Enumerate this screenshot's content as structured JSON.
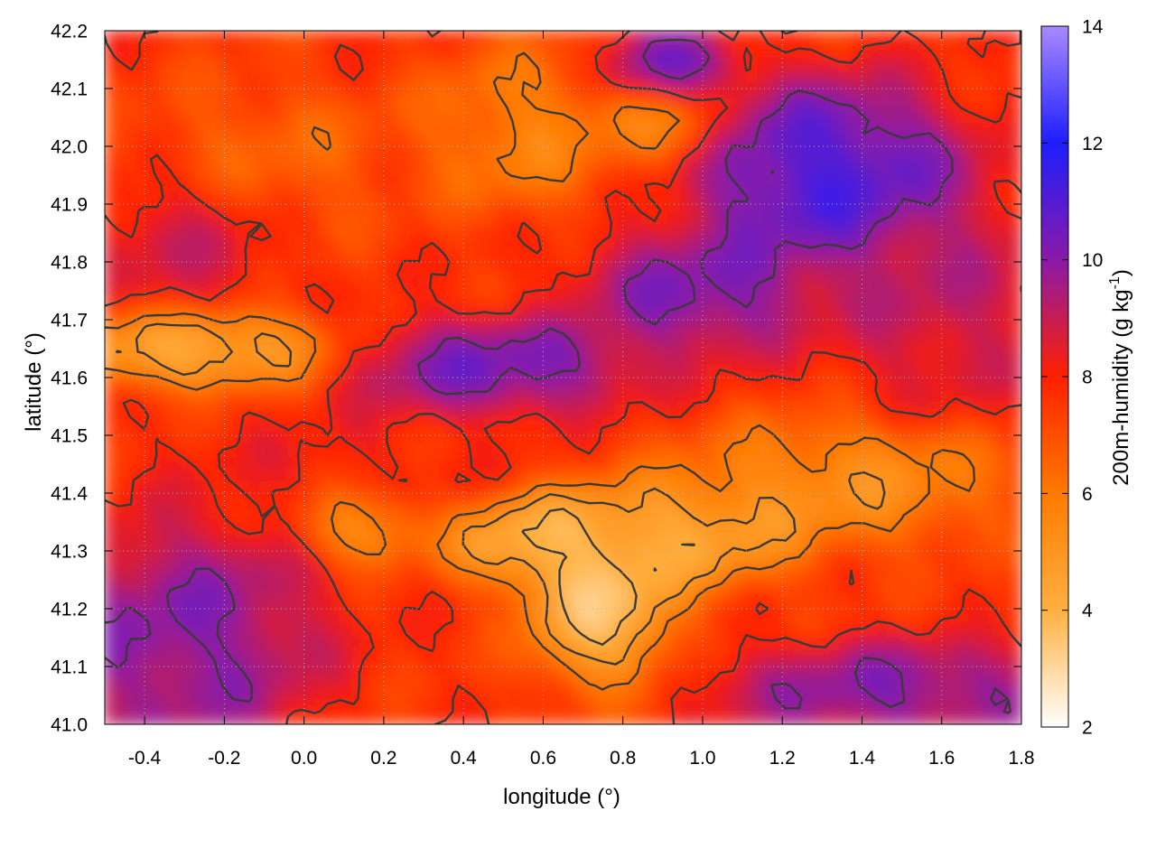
{
  "chart_data": {
    "type": "heatmap",
    "title": "",
    "xlabel": "longitude (°)",
    "ylabel": "latitude (°)",
    "xlim": [
      -0.5,
      1.8
    ],
    "ylim": [
      41.0,
      42.2
    ],
    "xticks": [
      "-0.4",
      "-0.2",
      "0.0",
      "0.2",
      "0.4",
      "0.6",
      "0.8",
      "1.0",
      "1.2",
      "1.4",
      "1.6",
      "1.8"
    ],
    "yticks": [
      "41.0",
      "41.1",
      "41.2",
      "41.3",
      "41.4",
      "41.5",
      "41.6",
      "41.7",
      "41.8",
      "41.9",
      "42.0",
      "42.1",
      "42.2"
    ],
    "grid": true,
    "contours": true,
    "colorbar": {
      "label_main": "200m-humidity (g kg",
      "label_sup": "-1",
      "label_close": ")",
      "range": [
        2,
        14
      ],
      "ticks": [
        "2",
        "4",
        "6",
        "8",
        "10",
        "12",
        "14"
      ],
      "colors": [
        "#ffffff",
        "#ffb040",
        "#ff7a00",
        "#ff2000",
        "#8a1aa8",
        "#1e1eff",
        "#a88aff"
      ]
    },
    "fields": {
      "base": 7.6,
      "blobs": [
        {
          "x": 0.75,
          "y": 41.22,
          "rx": 0.14,
          "ry": 0.11,
          "v": 2.3
        },
        {
          "x": 0.58,
          "y": 41.32,
          "rx": 0.16,
          "ry": 0.06,
          "v": 3.0
        },
        {
          "x": 0.95,
          "y": 41.33,
          "rx": 0.22,
          "ry": 0.07,
          "v": 3.5
        },
        {
          "x": 1.35,
          "y": 41.42,
          "rx": 0.3,
          "ry": 0.08,
          "v": 4.6
        },
        {
          "x": 0.15,
          "y": 41.35,
          "rx": 0.12,
          "ry": 0.05,
          "v": 4.2
        },
        {
          "x": -0.25,
          "y": 41.65,
          "rx": 0.25,
          "ry": 0.05,
          "v": 3.2
        },
        {
          "x": 0.55,
          "y": 42.03,
          "rx": 0.18,
          "ry": 0.1,
          "v": 5.2
        },
        {
          "x": 0.9,
          "y": 42.05,
          "rx": 0.12,
          "ry": 0.06,
          "v": 5.0
        },
        {
          "x": -0.1,
          "y": 41.98,
          "rx": 0.25,
          "ry": 0.1,
          "v": 6.2
        },
        {
          "x": 0.48,
          "y": 41.62,
          "rx": 0.28,
          "ry": 0.06,
          "v": 11.2
        },
        {
          "x": 1.0,
          "y": 41.75,
          "rx": 0.22,
          "ry": 0.08,
          "v": 11.0
        },
        {
          "x": 1.32,
          "y": 41.95,
          "rx": 0.25,
          "ry": 0.12,
          "v": 12.3
        },
        {
          "x": 0.92,
          "y": 42.13,
          "rx": 0.12,
          "ry": 0.05,
          "v": 11.8
        },
        {
          "x": -0.3,
          "y": 41.15,
          "rx": 0.25,
          "ry": 0.15,
          "v": 10.8
        },
        {
          "x": 1.5,
          "y": 41.06,
          "rx": 0.35,
          "ry": 0.06,
          "v": 10.8
        },
        {
          "x": 1.6,
          "y": 41.75,
          "rx": 0.2,
          "ry": 0.15,
          "v": 9.5
        },
        {
          "x": -0.3,
          "y": 41.85,
          "rx": 0.18,
          "ry": 0.1,
          "v": 9.3
        },
        {
          "x": 0.05,
          "y": 41.45,
          "rx": 0.3,
          "ry": 0.08,
          "v": 8.2
        }
      ]
    }
  }
}
